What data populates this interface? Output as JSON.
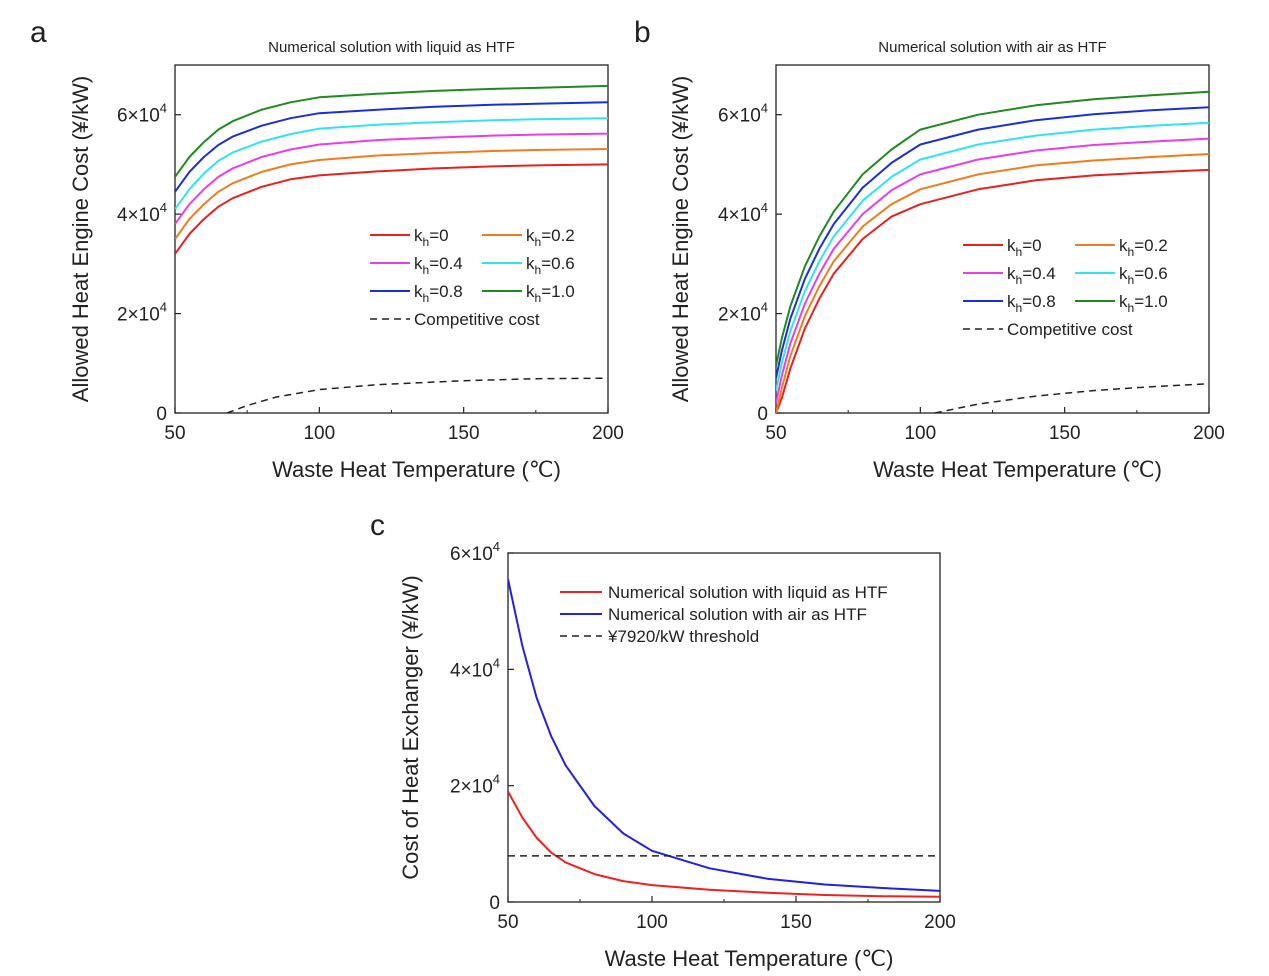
{
  "colors": {
    "k0": "#e8201f",
    "k02": "#f07c1f",
    "k04": "#e83ee8",
    "k06": "#2fe4ef",
    "k08": "#1a2fd9",
    "k10": "#1f8a1f",
    "competitive": "#222222",
    "liquid": "#f02020",
    "air": "#2020e8",
    "threshold": "#222222"
  },
  "chart_data": [
    {
      "panel": "a",
      "type": "line",
      "title": "Numerical solution with liquid as HTF",
      "xlabel": "Waste Heat Temperature (℃)",
      "ylabel": "Allowed Heat Engine Cost (¥/kW)",
      "xlim": [
        50,
        200
      ],
      "ylim": [
        0,
        70000
      ],
      "xticks": [
        "50",
        "100",
        "150",
        "200"
      ],
      "yticks": [
        {
          "label": "0",
          "value": 0
        },
        {
          "label": "2×10",
          "exp": "4",
          "value": 20000
        },
        {
          "label": "4×10",
          "exp": "4",
          "value": 40000
        },
        {
          "label": "6×10",
          "exp": "4",
          "value": 60000
        }
      ],
      "legend_position": "center-right",
      "legend_names": [
        {
          "pre": "k",
          "sub": "h",
          "post": "=0"
        },
        {
          "pre": "k",
          "sub": "h",
          "post": "=0.2"
        },
        {
          "pre": "k",
          "sub": "h",
          "post": "=0.4"
        },
        {
          "pre": "k",
          "sub": "h",
          "post": "=0.6"
        },
        {
          "pre": "k",
          "sub": "h",
          "post": "=0.8"
        },
        {
          "pre": "k",
          "sub": "h",
          "post": "=1.0"
        },
        {
          "pre": "Competitive cost",
          "sub": "",
          "post": ""
        }
      ],
      "x": [
        50,
        55,
        60,
        65,
        70,
        80,
        90,
        100,
        120,
        140,
        160,
        175,
        200
      ],
      "series": [
        {
          "color_key": "k0",
          "dash": false,
          "values": [
            32000,
            36000,
            39000,
            41500,
            43200,
            45500,
            47000,
            47800,
            48600,
            49200,
            49600,
            49800,
            50000
          ]
        },
        {
          "color_key": "k02",
          "dash": false,
          "values": [
            35000,
            39000,
            42000,
            44500,
            46200,
            48500,
            50000,
            50900,
            51800,
            52300,
            52700,
            52900,
            53100
          ]
        },
        {
          "color_key": "k04",
          "dash": false,
          "values": [
            38000,
            42000,
            45000,
            47500,
            49200,
            51500,
            53000,
            54000,
            54900,
            55400,
            55800,
            56000,
            56200
          ]
        },
        {
          "color_key": "k06",
          "dash": false,
          "values": [
            41000,
            45000,
            48200,
            50700,
            52400,
            54600,
            56100,
            57200,
            58000,
            58500,
            58900,
            59100,
            59300
          ]
        },
        {
          "color_key": "k08",
          "dash": false,
          "values": [
            44500,
            48500,
            51500,
            53900,
            55600,
            57800,
            59300,
            60300,
            61000,
            61600,
            62000,
            62200,
            62500
          ]
        },
        {
          "color_key": "k10",
          "dash": false,
          "values": [
            47500,
            51500,
            54500,
            57000,
            58700,
            61000,
            62500,
            63500,
            64200,
            64800,
            65200,
            65400,
            65800
          ]
        }
      ],
      "dashed_series": {
        "color_key": "competitive",
        "x": [
          68,
          75,
          85,
          100,
          120,
          150,
          175,
          200
        ],
        "values": [
          0,
          1500,
          3200,
          4700,
          5700,
          6500,
          6900,
          7000
        ]
      }
    },
    {
      "panel": "b",
      "type": "line",
      "title": "Numerical solution with air as HTF",
      "xlabel": "Waste Heat Temperature (℃)",
      "ylabel": "Allowed Heat Engine Cost (¥/kW)",
      "xlim": [
        50,
        200
      ],
      "ylim": [
        0,
        70000
      ],
      "xticks": [
        "50",
        "100",
        "150",
        "200"
      ],
      "yticks": [
        {
          "label": "0",
          "value": 0
        },
        {
          "label": "2×10",
          "exp": "4",
          "value": 20000
        },
        {
          "label": "4×10",
          "exp": "4",
          "value": 40000
        },
        {
          "label": "6×10",
          "exp": "4",
          "value": 60000
        }
      ],
      "legend_position": "center-right",
      "legend_names": [
        {
          "pre": "k",
          "sub": "h",
          "post": "=0"
        },
        {
          "pre": "k",
          "sub": "h",
          "post": "=0.2"
        },
        {
          "pre": "k",
          "sub": "h",
          "post": "=0.4"
        },
        {
          "pre": "k",
          "sub": "h",
          "post": "=0.6"
        },
        {
          "pre": "k",
          "sub": "h",
          "post": "=0.8"
        },
        {
          "pre": "k",
          "sub": "h",
          "post": "=1.0"
        },
        {
          "pre": "Competitive cost",
          "sub": "",
          "post": ""
        }
      ],
      "x": [
        50,
        52,
        55,
        60,
        65,
        70,
        80,
        90,
        100,
        120,
        140,
        160,
        180,
        200
      ],
      "series": [
        {
          "color_key": "k0",
          "dash": false,
          "values": [
            0,
            3000,
            9000,
            17000,
            23000,
            28000,
            35000,
            39500,
            42000,
            45000,
            46800,
            47800,
            48400,
            48900
          ]
        },
        {
          "color_key": "k02",
          "dash": false,
          "values": [
            0,
            5000,
            11500,
            19500,
            25500,
            30500,
            37500,
            42000,
            45000,
            48000,
            49800,
            50800,
            51500,
            52100
          ]
        },
        {
          "color_key": "k04",
          "dash": false,
          "values": [
            2000,
            7500,
            14000,
            22000,
            28000,
            33000,
            40000,
            44800,
            48000,
            51000,
            52800,
            53900,
            54600,
            55200
          ]
        },
        {
          "color_key": "k06",
          "dash": false,
          "values": [
            4500,
            10000,
            16500,
            24500,
            30500,
            35500,
            42700,
            47500,
            51000,
            54000,
            55800,
            57000,
            57800,
            58400
          ]
        },
        {
          "color_key": "k08",
          "dash": false,
          "values": [
            7000,
            12500,
            19000,
            27000,
            33000,
            38000,
            45300,
            50300,
            54000,
            57000,
            58900,
            60100,
            60900,
            61500
          ]
        },
        {
          "color_key": "k10",
          "dash": false,
          "values": [
            9500,
            15000,
            21500,
            29500,
            35500,
            40500,
            48000,
            53000,
            57000,
            60000,
            61900,
            63100,
            63900,
            64600
          ]
        }
      ],
      "dashed_series": {
        "color_key": "competitive",
        "x": [
          105,
          120,
          140,
          160,
          180,
          200
        ],
        "values": [
          0,
          1800,
          3400,
          4500,
          5300,
          5900
        ]
      }
    },
    {
      "panel": "c",
      "type": "line",
      "title": "",
      "xlabel": "Waste Heat Temperature (℃)",
      "ylabel": "Cost of Heat Exchanger (¥/kW)",
      "xlim": [
        50,
        200
      ],
      "ylim": [
        0,
        60000
      ],
      "xticks": [
        "50",
        "100",
        "150",
        "200"
      ],
      "yticks": [
        {
          "label": "0",
          "value": 0
        },
        {
          "label": "2×10",
          "exp": "4",
          "value": 20000
        },
        {
          "label": "4×10",
          "exp": "4",
          "value": 40000
        },
        {
          "label": "6×10",
          "exp": "4",
          "value": 60000
        }
      ],
      "legend_position": "top-right",
      "legend_names": [
        {
          "pre": "Numerical solution with liquid as HTF",
          "sub": "",
          "post": ""
        },
        {
          "pre": "Numerical solution with air as HTF",
          "sub": "",
          "post": ""
        },
        {
          "pre": "¥7920/kW threshold",
          "sub": "",
          "post": ""
        }
      ],
      "x": [
        50,
        55,
        60,
        65,
        70,
        80,
        90,
        100,
        120,
        140,
        160,
        180,
        200
      ],
      "series": [
        {
          "color_key": "liquid",
          "dash": false,
          "values": [
            19000,
            14500,
            11000,
            8500,
            6800,
            4800,
            3600,
            2900,
            2100,
            1600,
            1200,
            1000,
            900
          ]
        },
        {
          "color_key": "air",
          "dash": false,
          "values": [
            55500,
            44000,
            35000,
            28500,
            23500,
            16500,
            11800,
            8800,
            5800,
            4000,
            3000,
            2400,
            1900
          ]
        }
      ],
      "dashed_series": {
        "color_key": "threshold",
        "x": [
          50,
          200
        ],
        "values": [
          7920,
          7920
        ]
      }
    }
  ]
}
